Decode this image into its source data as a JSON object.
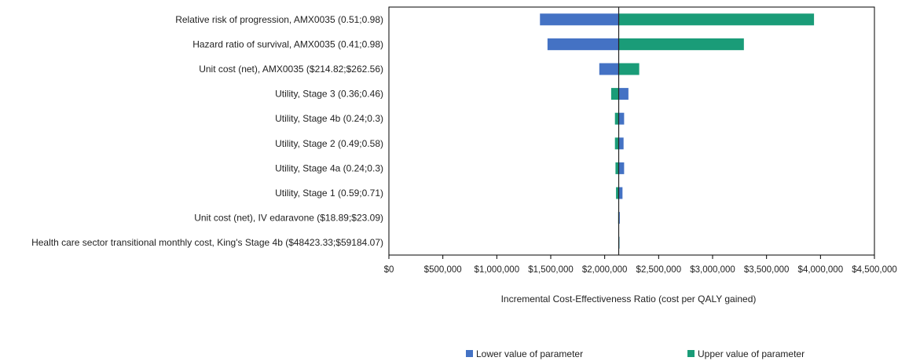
{
  "chart_data": {
    "type": "bar",
    "orientation": "horizontal",
    "subtype": "tornado",
    "title": "",
    "xlabel": "Incremental Cost-Effectiveness Ratio (cost per QALY gained)",
    "ylabel": "",
    "base_value": 2130000,
    "xlim": [
      0,
      4500000
    ],
    "x_ticks": [
      0,
      500000,
      1000000,
      1500000,
      2000000,
      2500000,
      3000000,
      3500000,
      4000000,
      4500000
    ],
    "x_tick_labels": [
      "$0",
      "$500,000",
      "$1,000,000",
      "$1,500,000",
      "$2,000,000",
      "$2,500,000",
      "$3,000,000",
      "$3,500,000",
      "$4,000,000",
      "$4,500,000"
    ],
    "categories": [
      "Relative risk of progression, AMX0035 (0.51;0.98)",
      "Hazard ratio of survival, AMX0035 (0.41;0.98)",
      "Unit cost (net), AMX0035 ($214.82;$262.56)",
      "Utility, Stage 3 (0.36;0.46)",
      "Utility, Stage 4b (0.24;0.3)",
      "Utility, Stage 2 (0.49;0.58)",
      "Utility, Stage 4a (0.24;0.3)",
      "Utility, Stage 1 (0.59;0.71)",
      "Unit cost (net), IV edaravone ($18.89;$23.09)",
      "Health care sector transitional monthly cost, King's Stage 4b ($48423.33;$59184.07)"
    ],
    "series": [
      {
        "name": "Lower value of parameter",
        "color": "#4472c4",
        "values": [
          1400000,
          1470000,
          1950000,
          2220000,
          2180000,
          2175000,
          2180000,
          2165000,
          2140000,
          2132000
        ]
      },
      {
        "name": "Upper value of parameter",
        "color": "#1a9c78",
        "values": [
          3940000,
          3290000,
          2320000,
          2060000,
          2095000,
          2095000,
          2100000,
          2105000,
          2125000,
          2128000
        ]
      }
    ],
    "legend": {
      "position": "bottom"
    },
    "grid": false
  }
}
